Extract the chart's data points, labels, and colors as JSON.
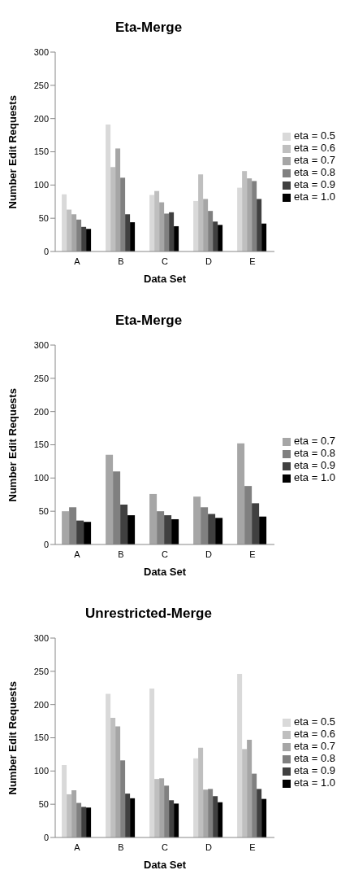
{
  "chart_data": [
    {
      "type": "bar",
      "title": "Eta-Merge",
      "xlabel": "Data Set",
      "ylabel": "Number Edit Requests",
      "categories": [
        "A",
        "B",
        "C",
        "D",
        "E"
      ],
      "ylim": [
        0,
        300
      ],
      "yticks": [
        0,
        50,
        100,
        150,
        200,
        250,
        300
      ],
      "grid": false,
      "legend": "right",
      "series": [
        {
          "name": "eta = 0.5",
          "color": "#d9d9d9",
          "values": [
            86,
            191,
            85,
            76,
            96
          ]
        },
        {
          "name": "eta = 0.6",
          "color": "#bfbfbf",
          "values": [
            63,
            127,
            91,
            116,
            121
          ]
        },
        {
          "name": "eta = 0.7",
          "color": "#a6a6a6",
          "values": [
            56,
            155,
            74,
            79,
            110
          ]
        },
        {
          "name": "eta = 0.8",
          "color": "#808080",
          "values": [
            48,
            111,
            57,
            61,
            106
          ]
        },
        {
          "name": "eta = 0.9",
          "color": "#404040",
          "values": [
            37,
            56,
            59,
            45,
            79
          ]
        },
        {
          "name": "eta = 1.0",
          "color": "#000000",
          "values": [
            34,
            44,
            38,
            40,
            42
          ]
        }
      ]
    },
    {
      "type": "bar",
      "title": "Eta-Merge",
      "xlabel": "Data Set",
      "ylabel": "Number Edit Requests",
      "categories": [
        "A",
        "B",
        "C",
        "D",
        "E"
      ],
      "ylim": [
        0,
        300
      ],
      "yticks": [
        0,
        50,
        100,
        150,
        200,
        250,
        300
      ],
      "grid": false,
      "legend": "right",
      "series": [
        {
          "name": "eta = 0.7",
          "color": "#a6a6a6",
          "values": [
            50,
            135,
            76,
            72,
            152
          ]
        },
        {
          "name": "eta = 0.8",
          "color": "#808080",
          "values": [
            56,
            110,
            50,
            56,
            88
          ]
        },
        {
          "name": "eta = 0.9",
          "color": "#404040",
          "values": [
            36,
            60,
            44,
            46,
            62
          ]
        },
        {
          "name": "eta = 1.0",
          "color": "#000000",
          "values": [
            34,
            44,
            38,
            40,
            42
          ]
        }
      ]
    },
    {
      "type": "bar",
      "title": "Unrestricted-Merge",
      "xlabel": "Data Set",
      "ylabel": "Number Edit Requests",
      "categories": [
        "A",
        "B",
        "C",
        "D",
        "E"
      ],
      "ylim": [
        0,
        300
      ],
      "yticks": [
        0,
        50,
        100,
        150,
        200,
        250,
        300
      ],
      "grid": false,
      "legend": "right",
      "series": [
        {
          "name": "eta = 0.5",
          "color": "#d9d9d9",
          "values": [
            109,
            216,
            224,
            119,
            246
          ]
        },
        {
          "name": "eta = 0.6",
          "color": "#bfbfbf",
          "values": [
            65,
            180,
            88,
            135,
            133
          ]
        },
        {
          "name": "eta = 0.7",
          "color": "#a6a6a6",
          "values": [
            71,
            167,
            89,
            72,
            147
          ]
        },
        {
          "name": "eta = 0.8",
          "color": "#808080",
          "values": [
            52,
            116,
            78,
            73,
            96
          ]
        },
        {
          "name": "eta = 0.9",
          "color": "#404040",
          "values": [
            46,
            66,
            56,
            62,
            73
          ]
        },
        {
          "name": "eta = 1.0",
          "color": "#000000",
          "values": [
            45,
            59,
            51,
            53,
            58
          ]
        }
      ]
    }
  ]
}
